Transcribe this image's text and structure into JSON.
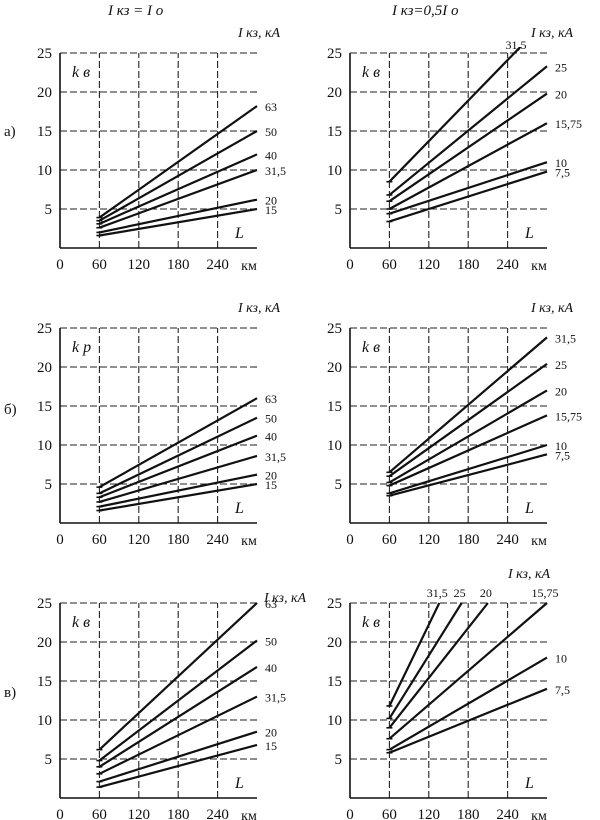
{
  "column_titles": [
    "I кз = I о",
    "I кз=0,5I о"
  ],
  "row_labels": [
    "а)",
    "б)",
    "в)"
  ],
  "chart_data": [
    {
      "type": "line",
      "ylabel": "k в",
      "xlabel": "L",
      "x_unit": "км",
      "legend_title": "I кз, кА",
      "xticks": [
        0,
        60,
        120,
        180,
        240
      ],
      "xlim": [
        0,
        300
      ],
      "yticks": [
        5,
        10,
        15,
        20,
        25
      ],
      "ylim": [
        0,
        25
      ],
      "grid": true,
      "series": [
        {
          "name": "63",
          "x": [
            60,
            300
          ],
          "y": [
            3.9,
            18.2
          ]
        },
        {
          "name": "50",
          "x": [
            60,
            300
          ],
          "y": [
            3.5,
            15.0
          ]
        },
        {
          "name": "40",
          "x": [
            60,
            300
          ],
          "y": [
            3.1,
            12.0
          ]
        },
        {
          "name": "31,5",
          "x": [
            60,
            300
          ],
          "y": [
            2.6,
            10.0
          ]
        },
        {
          "name": "20",
          "x": [
            60,
            300
          ],
          "y": [
            2.0,
            6.2
          ]
        },
        {
          "name": "15",
          "x": [
            60,
            300
          ],
          "y": [
            1.6,
            5.0
          ]
        }
      ]
    },
    {
      "type": "line",
      "ylabel": "k в",
      "xlabel": "L",
      "x_unit": "км",
      "legend_title": "I кз, кА",
      "xticks": [
        0,
        60,
        120,
        180,
        240
      ],
      "xlim": [
        0,
        300
      ],
      "yticks": [
        5,
        10,
        15,
        20,
        25
      ],
      "ylim": [
        0,
        25
      ],
      "grid": true,
      "series": [
        {
          "name": "31,5",
          "x": [
            60,
            262
          ],
          "y": [
            8.5,
            26.0
          ]
        },
        {
          "name": "25",
          "x": [
            60,
            300
          ],
          "y": [
            6.8,
            23.3
          ]
        },
        {
          "name": "20",
          "x": [
            60,
            300
          ],
          "y": [
            6.0,
            19.8
          ]
        },
        {
          "name": "15,75",
          "x": [
            60,
            300
          ],
          "y": [
            5.0,
            16.0
          ]
        },
        {
          "name": "10",
          "x": [
            60,
            300
          ],
          "y": [
            4.4,
            11.0
          ]
        },
        {
          "name": "7,5",
          "x": [
            60,
            300
          ],
          "y": [
            3.4,
            9.8
          ]
        }
      ]
    },
    {
      "type": "line",
      "ylabel": "k р",
      "xlabel": "L",
      "x_unit": "км",
      "legend_title": "I кз, кА",
      "xticks": [
        0,
        60,
        120,
        180,
        240
      ],
      "xlim": [
        0,
        300
      ],
      "yticks": [
        5,
        10,
        15,
        20,
        25
      ],
      "ylim": [
        0,
        25
      ],
      "grid": true,
      "series": [
        {
          "name": "63",
          "x": [
            60,
            300
          ],
          "y": [
            4.6,
            16.0
          ]
        },
        {
          "name": "50",
          "x": [
            60,
            300
          ],
          "y": [
            3.8,
            13.5
          ]
        },
        {
          "name": "40",
          "x": [
            60,
            300
          ],
          "y": [
            3.3,
            11.2
          ]
        },
        {
          "name": "31,5",
          "x": [
            60,
            300
          ],
          "y": [
            2.7,
            8.6
          ]
        },
        {
          "name": "20",
          "x": [
            60,
            300
          ],
          "y": [
            2.1,
            6.2
          ]
        },
        {
          "name": "15",
          "x": [
            60,
            300
          ],
          "y": [
            1.6,
            5.0
          ]
        }
      ]
    },
    {
      "type": "line",
      "ylabel": "k в",
      "xlabel": "L",
      "x_unit": "км",
      "legend_title": "I кз, кА",
      "xticks": [
        0,
        60,
        120,
        180,
        240
      ],
      "xlim": [
        0,
        300
      ],
      "yticks": [
        5,
        10,
        15,
        20,
        25
      ],
      "ylim": [
        0,
        25
      ],
      "grid": true,
      "series": [
        {
          "name": "31,5",
          "x": [
            60,
            300
          ],
          "y": [
            6.5,
            23.8
          ]
        },
        {
          "name": "25",
          "x": [
            60,
            300
          ],
          "y": [
            6.0,
            20.4
          ]
        },
        {
          "name": "20",
          "x": [
            60,
            300
          ],
          "y": [
            5.2,
            17.0
          ]
        },
        {
          "name": "15,75",
          "x": [
            60,
            300
          ],
          "y": [
            4.8,
            13.8
          ]
        },
        {
          "name": "10",
          "x": [
            60,
            300
          ],
          "y": [
            3.8,
            10.0
          ]
        },
        {
          "name": "7,5",
          "x": [
            60,
            300
          ],
          "y": [
            3.5,
            8.8
          ]
        }
      ]
    },
    {
      "type": "line",
      "ylabel": "k в",
      "xlabel": "L",
      "x_unit": "км",
      "legend_title": "I кз, кА",
      "xticks": [
        0,
        60,
        120,
        180,
        240
      ],
      "xlim": [
        0,
        300
      ],
      "yticks": [
        5,
        10,
        15,
        20,
        25
      ],
      "ylim": [
        0,
        25
      ],
      "grid": true,
      "series": [
        {
          "name": "63",
          "x": [
            60,
            300
          ],
          "y": [
            6.2,
            25.0
          ]
        },
        {
          "name": "50",
          "x": [
            60,
            300
          ],
          "y": [
            4.8,
            20.2
          ]
        },
        {
          "name": "40",
          "x": [
            60,
            300
          ],
          "y": [
            4.0,
            16.8
          ]
        },
        {
          "name": "31,5",
          "x": [
            60,
            300
          ],
          "y": [
            3.1,
            13.0
          ]
        },
        {
          "name": "20",
          "x": [
            60,
            300
          ],
          "y": [
            2.1,
            8.5
          ]
        },
        {
          "name": "15",
          "x": [
            60,
            300
          ],
          "y": [
            1.4,
            6.8
          ]
        }
      ]
    },
    {
      "type": "line",
      "ylabel": "k в",
      "xlabel": "L",
      "x_unit": "км",
      "legend_title": "I кз, кА",
      "xticks": [
        0,
        60,
        120,
        180,
        240
      ],
      "xlim": [
        0,
        300
      ],
      "yticks": [
        5,
        10,
        15,
        20,
        25
      ],
      "ylim": [
        0,
        25
      ],
      "grid": true,
      "series": [
        {
          "name": "31,5",
          "x": [
            60,
            136
          ],
          "y": [
            11.8,
            25.0
          ]
        },
        {
          "name": "25",
          "x": [
            60,
            170
          ],
          "y": [
            10.2,
            25.0
          ]
        },
        {
          "name": "20",
          "x": [
            60,
            210
          ],
          "y": [
            9.0,
            25.0
          ]
        },
        {
          "name": "15,75",
          "x": [
            60,
            300
          ],
          "y": [
            7.6,
            25.0
          ]
        },
        {
          "name": "10",
          "x": [
            60,
            300
          ],
          "y": [
            6.2,
            18.0
          ]
        },
        {
          "name": "7,5",
          "x": [
            60,
            300
          ],
          "y": [
            5.8,
            14.0
          ]
        }
      ]
    }
  ]
}
